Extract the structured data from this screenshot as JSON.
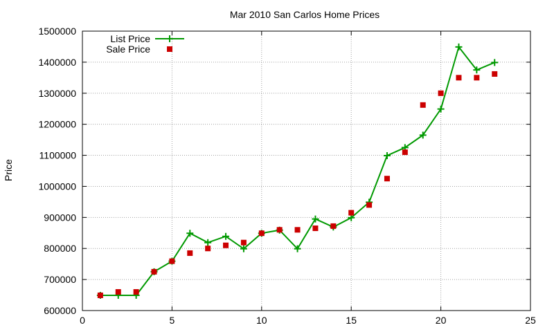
{
  "chart_data": {
    "type": "line",
    "title": "Mar 2010 San Carlos Home Prices",
    "xlabel": "",
    "ylabel": "Price",
    "xlim": [
      0,
      25
    ],
    "ylim": [
      600000,
      1500000
    ],
    "xticks": [
      0,
      5,
      10,
      15,
      20,
      25
    ],
    "yticks": [
      600000,
      700000,
      800000,
      900000,
      1000000,
      1100000,
      1200000,
      1300000,
      1400000,
      1500000
    ],
    "grid": true,
    "legend_position": "top-left",
    "series": [
      {
        "name": "List Price",
        "style": "line-with-plus-markers",
        "color": "#009900",
        "x": [
          1,
          2,
          3,
          4,
          5,
          6,
          7,
          8,
          9,
          10,
          11,
          12,
          13,
          14,
          15,
          16,
          17,
          18,
          19,
          20,
          21,
          22,
          23
        ],
        "y": [
          649000,
          649000,
          649000,
          725000,
          759000,
          849000,
          819000,
          839000,
          799000,
          849000,
          859000,
          799000,
          895000,
          869000,
          899000,
          949000,
          1099000,
          1125000,
          1165000,
          1249000,
          1449000,
          1375000,
          1399000
        ]
      },
      {
        "name": "Sale Price",
        "style": "square-markers",
        "color": "#cc0000",
        "x": [
          1,
          2,
          3,
          4,
          5,
          6,
          7,
          8,
          9,
          10,
          11,
          12,
          13,
          14,
          15,
          16,
          17,
          18,
          19,
          20,
          21,
          22,
          23
        ],
        "y": [
          649000,
          660000,
          660000,
          725000,
          759000,
          785000,
          800000,
          810000,
          819000,
          849000,
          860000,
          860000,
          865000,
          872000,
          915000,
          940000,
          1025000,
          1110000,
          1262000,
          1300000,
          1350000,
          1350000,
          1362000
        ]
      }
    ]
  }
}
